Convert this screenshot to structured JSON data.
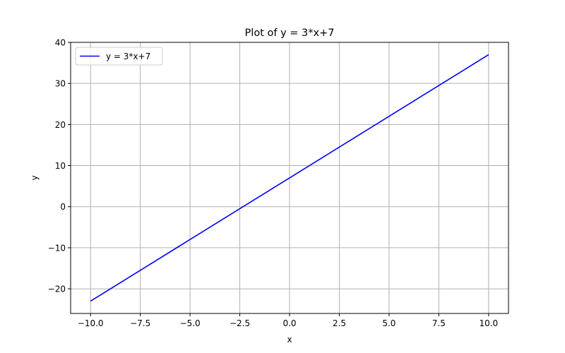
{
  "chart_data": {
    "type": "line",
    "title": "Plot of y = 3*x+7",
    "xlabel": "x",
    "ylabel": "y",
    "xlim": [
      -11,
      11
    ],
    "ylim": [
      -26.0,
      40
    ],
    "xticks": [
      -10.0,
      -7.5,
      -5.0,
      -2.5,
      0.0,
      2.5,
      5.0,
      7.5,
      10.0
    ],
    "xtick_labels": [
      "−10.0",
      "−7.5",
      "−5.0",
      "−2.5",
      "0.0",
      "2.5",
      "5.0",
      "7.5",
      "10.0"
    ],
    "yticks": [
      -20,
      -10,
      0,
      10,
      20,
      30,
      40
    ],
    "ytick_labels": [
      "−20",
      "−10",
      "0",
      "10",
      "20",
      "30",
      "40"
    ],
    "grid": true,
    "legend_position": "top-left",
    "series": [
      {
        "name": "y = 3*x+7",
        "color": "#0000ff",
        "x": [
          -10,
          10
        ],
        "y": [
          -23,
          37
        ]
      }
    ]
  }
}
